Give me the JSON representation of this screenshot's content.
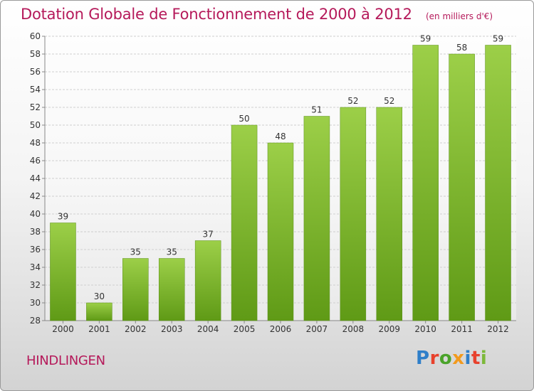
{
  "chart_data": {
    "type": "bar",
    "title": "Dotation Globale de Fonctionnement de 2000 à 2012",
    "subtitle": "(en milliers d'€)",
    "categories": [
      "2000",
      "2001",
      "2002",
      "2003",
      "2004",
      "2005",
      "2006",
      "2007",
      "2008",
      "2009",
      "2010",
      "2011",
      "2012"
    ],
    "values": [
      39,
      30,
      35,
      35,
      37,
      50,
      48,
      51,
      52,
      52,
      59,
      58,
      59
    ],
    "data_labels": [
      "39",
      "30",
      "35",
      "35",
      "37",
      "50",
      "48",
      "51",
      "52",
      "52",
      "59",
      "58",
      "59"
    ],
    "xlabel": "",
    "ylabel": "",
    "ylim": [
      28,
      60
    ],
    "yticks": [
      "28",
      "30",
      "32",
      "34",
      "36",
      "38",
      "40",
      "42",
      "44",
      "46",
      "48",
      "50",
      "52",
      "54",
      "56",
      "58",
      "60"
    ],
    "grid": "horizontal",
    "legend": "none",
    "colors": {
      "bar_top": "#9ccf48",
      "bar_bottom": "#5f9a16",
      "title": "#b5195a"
    }
  },
  "footer": {
    "location": "HINDLINGEN",
    "brand": "Proxiti",
    "brand_colors": [
      "#2f7fc9",
      "#e8412c",
      "#4aa32a",
      "#f29a1d",
      "#2f7fc9",
      "#e8412c",
      "#7db93a"
    ]
  }
}
